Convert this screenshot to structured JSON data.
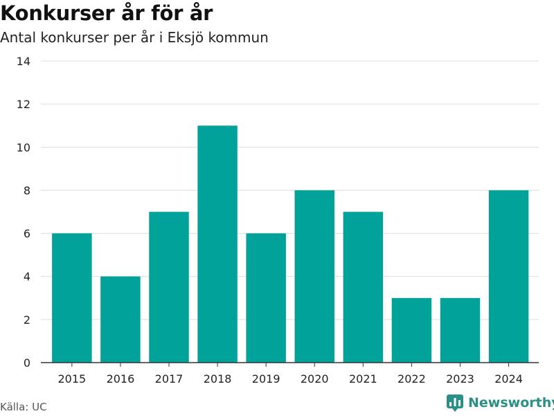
{
  "chart_data": {
    "type": "bar",
    "title": "Konkurser år för år",
    "subtitle": "Antal konkurser per år i Eksjö kommun",
    "categories": [
      "2015",
      "2016",
      "2017",
      "2018",
      "2019",
      "2020",
      "2021",
      "2022",
      "2023",
      "2024"
    ],
    "values": [
      6,
      4,
      7,
      11,
      6,
      8,
      7,
      3,
      3,
      8
    ],
    "xlabel": "",
    "ylabel": "",
    "ylim": [
      0,
      14
    ],
    "yticks": [
      0,
      2,
      4,
      6,
      8,
      10,
      12,
      14
    ],
    "grid": true,
    "bar_color": "#00a29a"
  },
  "footer": {
    "source": "Källa: UC",
    "brand": "Newsworthy",
    "brand_color": "#2a8f86",
    "brand_icon": "bar-chart-logo-icon"
  }
}
